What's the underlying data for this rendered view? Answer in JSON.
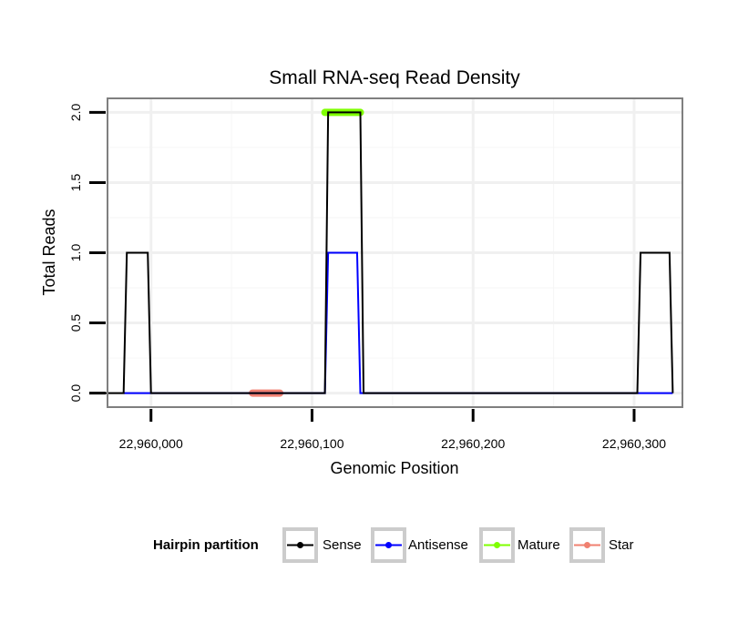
{
  "chart_data": {
    "type": "line",
    "title": "Small RNA-seq Read Density",
    "xlabel": "Genomic Position",
    "ylabel": "Total Reads",
    "xlim": [
      22959973,
      22960330
    ],
    "ylim": [
      -0.1,
      2.1
    ],
    "x_ticks": [
      22960000,
      22960100,
      22960200,
      22960300
    ],
    "x_tick_labels": [
      "22,960,000",
      "22,960,100",
      "22,960,200",
      "22,960,300"
    ],
    "y_ticks": [
      0,
      0.5,
      1,
      1.5,
      2
    ],
    "y_tick_labels": [
      "0.0",
      "0.5",
      "1.0",
      "1.5",
      "2.0"
    ],
    "grid": true,
    "series": [
      {
        "name": "Sense",
        "color": "#000000",
        "x": [
          22959967,
          22959983,
          22959985,
          22959998,
          22960000,
          22960108,
          22960110,
          22960130,
          22960132,
          22960302,
          22960304,
          22960322,
          22960324
        ],
        "y": [
          0,
          0,
          1,
          1,
          0,
          0,
          2,
          2,
          0,
          0,
          1,
          1,
          0
        ]
      },
      {
        "name": "Antisense",
        "color": "#0000ff",
        "x": [
          22959983,
          22960000,
          22960108,
          22960110,
          22960128,
          22960130,
          22960302,
          22960324
        ],
        "y": [
          0,
          0,
          0,
          1,
          1,
          0,
          0,
          0
        ]
      },
      {
        "name": "Mature",
        "color": "#7fff00",
        "x": [
          22960108,
          22960130
        ],
        "y": [
          2,
          2
        ]
      },
      {
        "name": "Star",
        "color": "#f08070",
        "x": [
          22960063,
          22960080
        ],
        "y": [
          0,
          0
        ]
      }
    ],
    "legend": {
      "title": "Hairpin partition",
      "position": "bottom",
      "entries": [
        "Sense",
        "Antisense",
        "Mature",
        "Star"
      ]
    }
  }
}
